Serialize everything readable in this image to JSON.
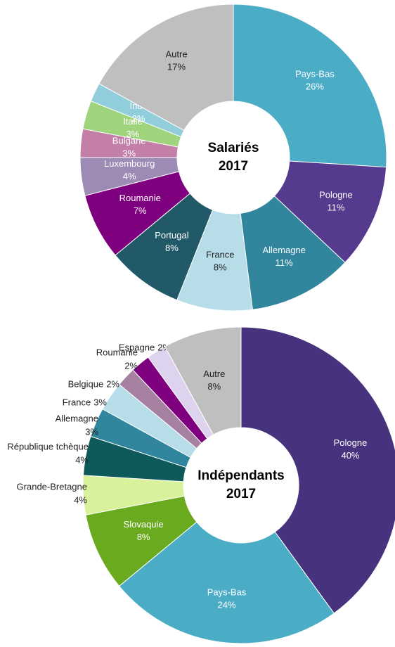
{
  "chart_data": [
    {
      "type": "donut",
      "title": [
        "Salariés",
        "2017"
      ],
      "categories": [
        "Pays-Bas",
        "Pologne",
        "Allemagne",
        "France",
        "Portugal",
        "Roumanie",
        "Luxembourg",
        "Bulgarie",
        "Italie",
        "Inde",
        "Autre"
      ],
      "values": [
        26,
        11,
        11,
        8,
        8,
        7,
        4,
        3,
        3,
        2,
        17
      ],
      "value_labels": [
        "26%",
        "11%",
        "11%",
        "8%",
        "8%",
        "7%",
        "4%",
        "3%",
        "3%",
        "2%",
        "17%"
      ],
      "colors": [
        "#4bacc6",
        "#553a8e",
        "#31859c",
        "#b7dde8",
        "#215968",
        "#7f007f",
        "#9d8bb5",
        "#c37fa8",
        "#a0d47c",
        "#92cddc",
        "#bfbfbf"
      ]
    },
    {
      "type": "donut",
      "title": [
        "Indépendants",
        "2017"
      ],
      "categories": [
        "Pologne",
        "Pays-Bas",
        "Slovaquie",
        "Grande-Bretagne",
        "République tchèque",
        "Allemagne",
        "France",
        "Belgique",
        "Roumanie",
        "Espagne",
        "Autre"
      ],
      "values": [
        40,
        24,
        8,
        4,
        4,
        3,
        3,
        2,
        2,
        2,
        8
      ],
      "value_labels": [
        "40%",
        "24%",
        "8%",
        "4%",
        "4%",
        "3%",
        "3%",
        "2%",
        "2%",
        "2%",
        "8%"
      ],
      "colors": [
        "#47337d",
        "#4bacc6",
        "#6aaa1e",
        "#d7f29a",
        "#0e5a5a",
        "#31859c",
        "#b7dde8",
        "#a680a0",
        "#7f007f",
        "#ddd3ee",
        "#bfbfbf"
      ]
    }
  ]
}
